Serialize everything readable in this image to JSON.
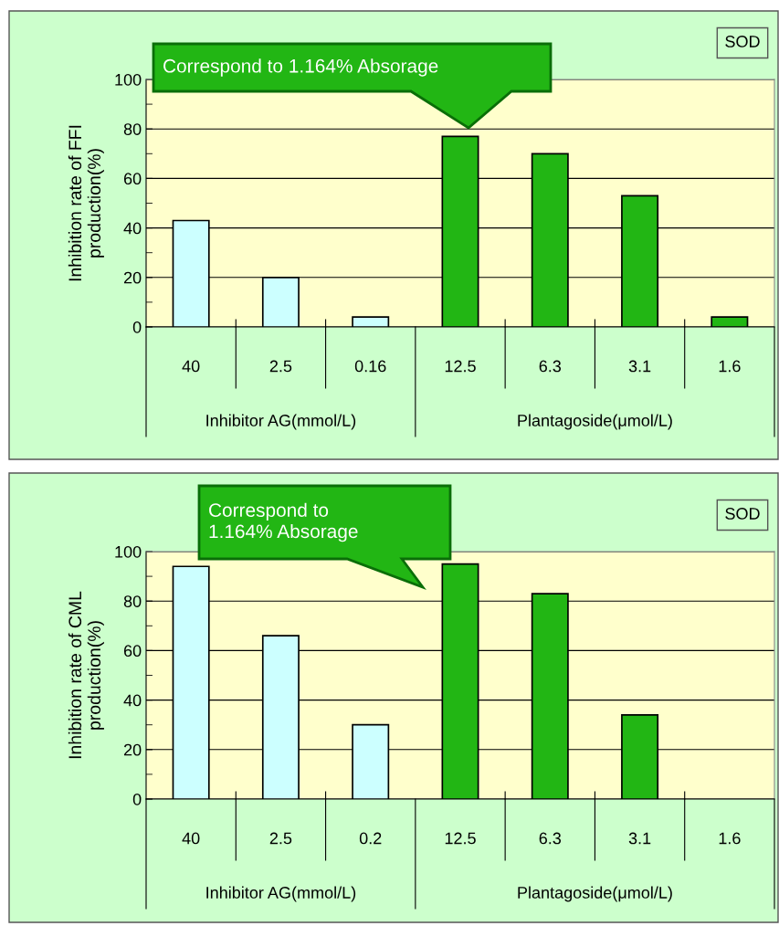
{
  "chart_data": [
    {
      "type": "bar",
      "categories": [
        "40",
        "2.5",
        "0.16",
        "12.5",
        "6.3",
        "3.1",
        "1.6"
      ],
      "values": [
        43,
        20,
        4,
        77,
        70,
        53,
        4
      ],
      "colors": [
        "#ccffff",
        "#ccffff",
        "#ccffff",
        "#22b614",
        "#22b614",
        "#22b614",
        "#22b614"
      ],
      "ylabel": "Inhibition rate of FFI\nproduction(%)",
      "ylim": [
        0,
        100
      ],
      "yticks": [
        0,
        20,
        40,
        60,
        80,
        100
      ],
      "grid": "y",
      "annotations": [
        "Correspond to 1.164% Absorage",
        "SOD",
        "Inhibitor AG(mmol/L)",
        "Plantagoside(μmol/L)"
      ]
    },
    {
      "type": "bar",
      "categories": [
        "40",
        "2.5",
        "0.2",
        "12.5",
        "6.3",
        "3.1",
        "1.6"
      ],
      "values": [
        94,
        66,
        30,
        95,
        83,
        34,
        null
      ],
      "colors": [
        "#ccffff",
        "#ccffff",
        "#ccffff",
        "#22b614",
        "#22b614",
        "#22b614",
        "#22b614"
      ],
      "ylabel": "Inhibition rate of CML\nproduction(%)",
      "ylim": [
        0,
        100
      ],
      "yticks": [
        0,
        20,
        40,
        60,
        80,
        100
      ],
      "grid": "y",
      "annotations": [
        "Correspond to\n1.164% Absorage",
        "SOD",
        "Inhibitor AG(mmol/L)",
        "Plantagoside(μmol/L)"
      ]
    }
  ]
}
